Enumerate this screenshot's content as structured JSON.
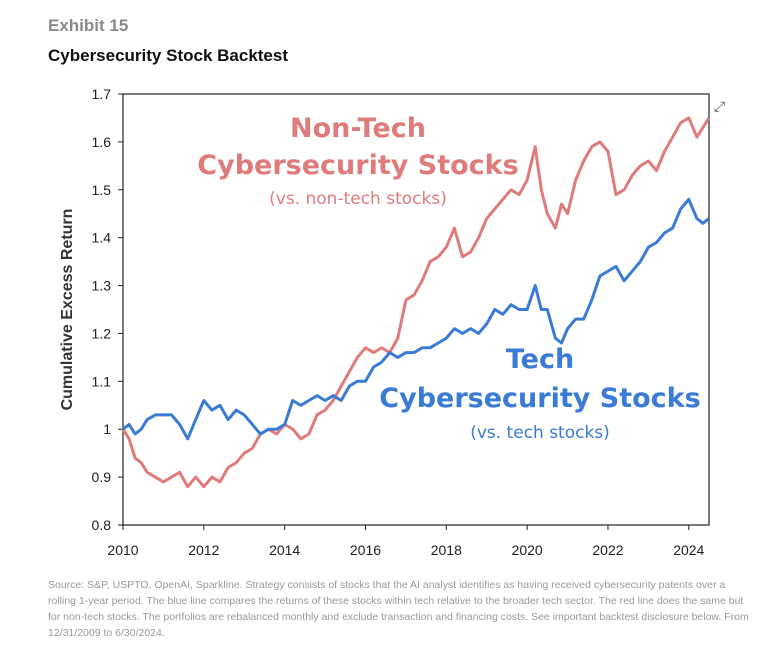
{
  "header": {
    "exhibit": "Exhibit 15",
    "title": "Cybersecurity Stock Backtest"
  },
  "icons": {
    "expand": "expand-arrows-icon"
  },
  "chart_data": {
    "type": "line",
    "ylabel": "Cumulative Excess Return",
    "xlabel": "",
    "xlim": [
      2010,
      2024.5
    ],
    "ylim": [
      0.8,
      1.7
    ],
    "xticks": [
      "2010",
      "2012",
      "2014",
      "2016",
      "2018",
      "2020",
      "2022",
      "2024"
    ],
    "yticks": [
      "0.8",
      "0.9",
      "1",
      "1.1",
      "1.2",
      "1.3",
      "1.4",
      "1.5",
      "1.6",
      "1.7"
    ],
    "annotations": {
      "nontech_line1": "Non-Tech",
      "nontech_line2": "Cybersecurity Stocks",
      "nontech_sub": "(vs. non-tech stocks)",
      "tech_line1": "Tech",
      "tech_line2": "Cybersecurity Stocks",
      "tech_sub": "(vs. tech stocks)"
    },
    "series": [
      {
        "name": "Non-Tech Cybersecurity Stocks",
        "color": "#e07b7b",
        "x": [
          2010,
          2010.15,
          2010.3,
          2010.45,
          2010.6,
          2010.8,
          2011,
          2011.2,
          2011.4,
          2011.6,
          2011.8,
          2012,
          2012.2,
          2012.4,
          2012.6,
          2012.8,
          2013,
          2013.2,
          2013.4,
          2013.6,
          2013.8,
          2014,
          2014.2,
          2014.4,
          2014.6,
          2014.8,
          2015,
          2015.2,
          2015.4,
          2015.6,
          2015.8,
          2016,
          2016.2,
          2016.4,
          2016.6,
          2016.8,
          2017,
          2017.2,
          2017.4,
          2017.6,
          2017.8,
          2018,
          2018.2,
          2018.4,
          2018.6,
          2018.8,
          2019,
          2019.2,
          2019.4,
          2019.6,
          2019.8,
          2020,
          2020.2,
          2020.35,
          2020.5,
          2020.7,
          2020.85,
          2021,
          2021.2,
          2021.4,
          2021.6,
          2021.8,
          2022,
          2022.2,
          2022.4,
          2022.6,
          2022.8,
          2023,
          2023.2,
          2023.4,
          2023.6,
          2023.8,
          2024,
          2024.2,
          2024.35,
          2024.5
        ],
        "values": [
          1.0,
          0.98,
          0.94,
          0.93,
          0.91,
          0.9,
          0.89,
          0.9,
          0.91,
          0.88,
          0.9,
          0.88,
          0.9,
          0.89,
          0.92,
          0.93,
          0.95,
          0.96,
          0.99,
          1.0,
          0.99,
          1.01,
          1.0,
          0.98,
          0.99,
          1.03,
          1.04,
          1.06,
          1.09,
          1.12,
          1.15,
          1.17,
          1.16,
          1.17,
          1.16,
          1.19,
          1.27,
          1.28,
          1.31,
          1.35,
          1.36,
          1.38,
          1.42,
          1.36,
          1.37,
          1.4,
          1.44,
          1.46,
          1.48,
          1.5,
          1.49,
          1.52,
          1.59,
          1.5,
          1.45,
          1.42,
          1.47,
          1.45,
          1.52,
          1.56,
          1.59,
          1.6,
          1.58,
          1.49,
          1.5,
          1.53,
          1.55,
          1.56,
          1.54,
          1.58,
          1.61,
          1.64,
          1.65,
          1.61,
          1.63,
          1.65
        ]
      },
      {
        "name": "Tech Cybersecurity Stocks",
        "color": "#3a7bd5",
        "x": [
          2010,
          2010.15,
          2010.3,
          2010.45,
          2010.6,
          2010.8,
          2011,
          2011.2,
          2011.4,
          2011.6,
          2011.8,
          2012,
          2012.2,
          2012.4,
          2012.6,
          2012.8,
          2013,
          2013.2,
          2013.4,
          2013.6,
          2013.8,
          2014,
          2014.2,
          2014.4,
          2014.6,
          2014.8,
          2015,
          2015.2,
          2015.4,
          2015.6,
          2015.8,
          2016,
          2016.2,
          2016.4,
          2016.6,
          2016.8,
          2017,
          2017.2,
          2017.4,
          2017.6,
          2017.8,
          2018,
          2018.2,
          2018.4,
          2018.6,
          2018.8,
          2019,
          2019.2,
          2019.4,
          2019.6,
          2019.8,
          2020,
          2020.2,
          2020.35,
          2020.5,
          2020.7,
          2020.85,
          2021,
          2021.2,
          2021.4,
          2021.6,
          2021.8,
          2022,
          2022.2,
          2022.4,
          2022.6,
          2022.8,
          2023,
          2023.2,
          2023.4,
          2023.6,
          2023.8,
          2024,
          2024.2,
          2024.35,
          2024.5
        ],
        "values": [
          1.0,
          1.01,
          0.99,
          1.0,
          1.02,
          1.03,
          1.03,
          1.03,
          1.01,
          0.98,
          1.02,
          1.06,
          1.04,
          1.05,
          1.02,
          1.04,
          1.03,
          1.01,
          0.99,
          1.0,
          1.0,
          1.01,
          1.06,
          1.05,
          1.06,
          1.07,
          1.06,
          1.07,
          1.06,
          1.09,
          1.1,
          1.1,
          1.13,
          1.14,
          1.16,
          1.15,
          1.16,
          1.16,
          1.17,
          1.17,
          1.18,
          1.19,
          1.21,
          1.2,
          1.21,
          1.2,
          1.22,
          1.25,
          1.24,
          1.26,
          1.25,
          1.25,
          1.3,
          1.25,
          1.25,
          1.19,
          1.18,
          1.21,
          1.23,
          1.23,
          1.27,
          1.32,
          1.33,
          1.34,
          1.31,
          1.33,
          1.35,
          1.38,
          1.39,
          1.41,
          1.42,
          1.46,
          1.48,
          1.44,
          1.43,
          1.44
        ]
      }
    ]
  },
  "footer": {
    "source": "Source: S&P, USPTO, OpenAI, Sparkline. Strategy consists of stocks that the AI analyst identifies as having received cybersecurity patents over a rolling 1-year period. The blue line compares the returns of these stocks within tech relative to the broader tech sector. The red line does the same but for non-tech stocks. The portfolios are rebalanced monthly and exclude transaction and financing costs. See important backtest disclosure below. From 12/31/2009 to 6/30/2024."
  }
}
